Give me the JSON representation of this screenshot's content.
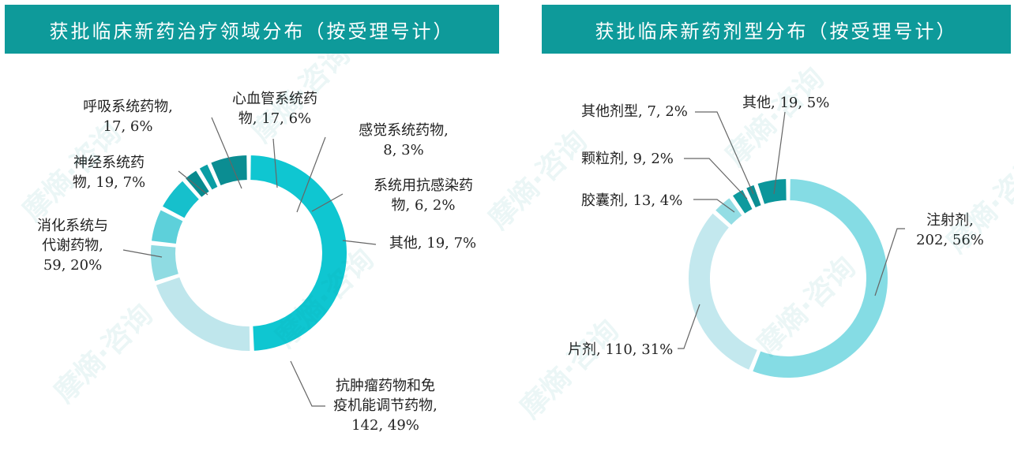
{
  "watermark_text": "摩熵·咨询",
  "colors": {
    "header_bg": "#0e9a9a",
    "leader": "#666666"
  },
  "chart_data": [
    {
      "type": "pie",
      "variant": "donut",
      "title": "获批临床新药治疗领域分布（按受理号计）",
      "slices": [
        {
          "label": "抗肿瘤药物和免疫机能调节药物",
          "value": 142,
          "percent": "49%",
          "color": "#0fc6d1",
          "label_lines": [
            "抗肿瘤药物和免",
            "疫机能调节药物,",
            "142, 49%"
          ]
        },
        {
          "label": "消化系统与代谢药物",
          "value": 59,
          "percent": "20%",
          "color": "#bfe6ec",
          "label_lines": [
            "消化系统与",
            "代谢药物,",
            "59, 20%"
          ]
        },
        {
          "label": "神经系统药物",
          "value": 19,
          "percent": "7%",
          "color": "#8fdbe2",
          "label_lines": [
            "神经系统药",
            "物, 19, 7%"
          ]
        },
        {
          "label": "呼吸系统药物",
          "value": 17,
          "percent": "6%",
          "color": "#5dd0da",
          "label_lines": [
            "呼吸系统药物,",
            "17, 6%"
          ]
        },
        {
          "label": "心血管系统药物",
          "value": 17,
          "percent": "6%",
          "color": "#16c0cc",
          "label_lines": [
            "心血管系统药",
            "物, 17, 6%"
          ]
        },
        {
          "label": "感觉系统药物",
          "value": 8,
          "percent": "3%",
          "color": "#088a8e",
          "label_lines": [
            "感觉系统药物,",
            "8, 3%"
          ]
        },
        {
          "label": "系统用抗感染药物",
          "value": 6,
          "percent": "2%",
          "color": "#0a9ea4",
          "label_lines": [
            "系统用抗感染药",
            "物, 6, 2%"
          ]
        },
        {
          "label": "其他",
          "value": 19,
          "percent": "7%",
          "color": "#0b8d92",
          "label_lines": [
            "其他, 19, 7%"
          ]
        }
      ]
    },
    {
      "type": "pie",
      "variant": "donut",
      "title": "获批临床新药剂型分布（按受理号计）",
      "slices": [
        {
          "label": "注射剂",
          "value": 202,
          "percent": "56%",
          "color": "#85dce4",
          "label_lines": [
            "注射剂,",
            "202, 56%"
          ]
        },
        {
          "label": "片剂",
          "value": 110,
          "percent": "31%",
          "color": "#c3e8ee",
          "label_lines": [
            "片剂, 110, 31%"
          ]
        },
        {
          "label": "胶囊剂",
          "value": 13,
          "percent": "4%",
          "color": "#93dde4",
          "label_lines": [
            "胶囊剂, 13, 4%"
          ]
        },
        {
          "label": "颗粒剂",
          "value": 9,
          "percent": "2%",
          "color": "#0e9a9e",
          "label_lines": [
            "颗粒剂, 9, 2%"
          ]
        },
        {
          "label": "其他剂型",
          "value": 7,
          "percent": "2%",
          "color": "#0b8e93",
          "label_lines": [
            "其他剂型, 7, 2%"
          ]
        },
        {
          "label": "其他",
          "value": 19,
          "percent": "5%",
          "color": "#0b969b",
          "label_lines": [
            "其他, 19, 5%"
          ]
        }
      ]
    }
  ]
}
